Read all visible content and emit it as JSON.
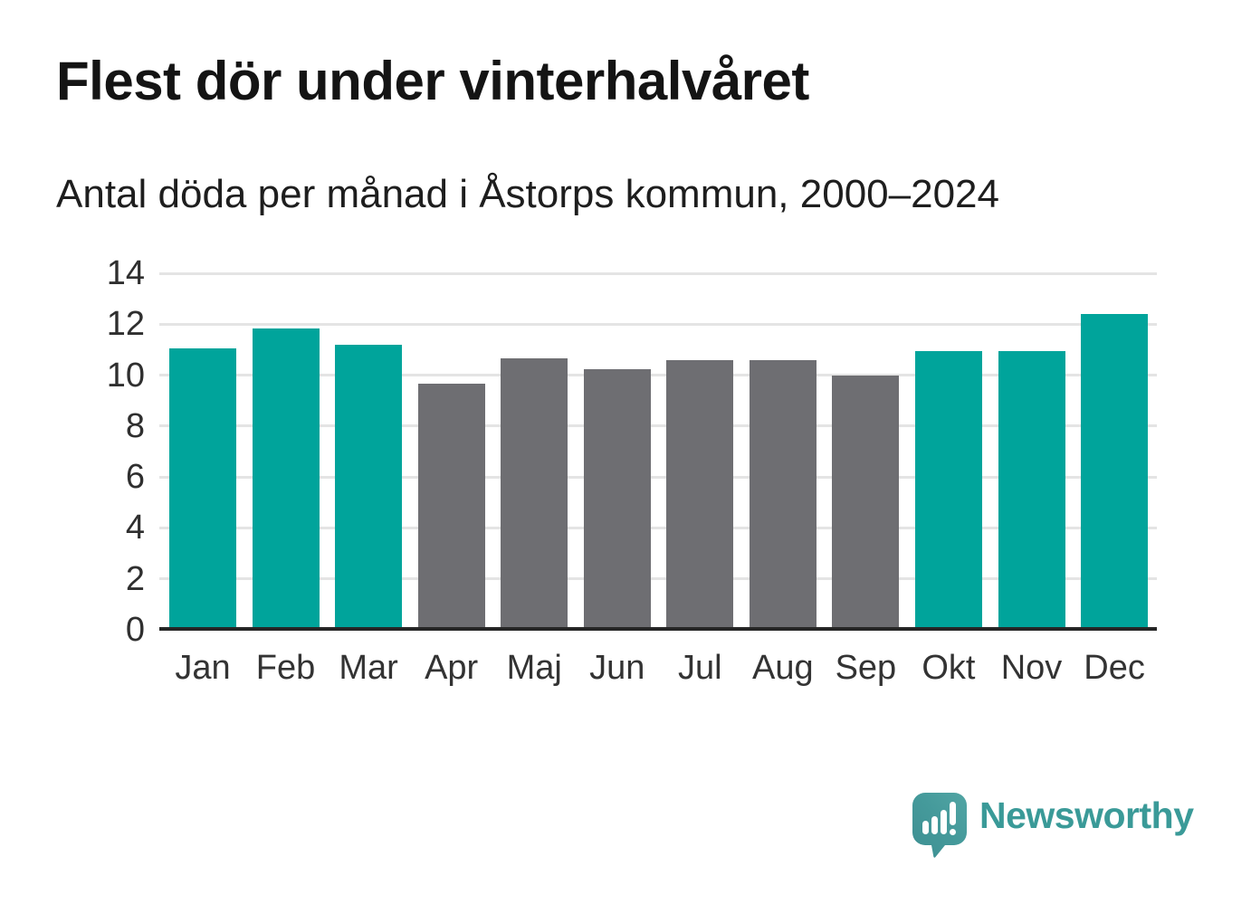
{
  "header": {
    "title": "Flest dör under vinterhalvåret",
    "subtitle": "Antal döda per månad i Åstorps kommun, 2000–2024"
  },
  "chart_data": {
    "type": "bar",
    "title": "Flest dör under vinterhalvåret",
    "subtitle": "Antal döda per månad i Åstorps kommun, 2000–2024",
    "categories": [
      "Jan",
      "Feb",
      "Mar",
      "Apr",
      "Maj",
      "Jun",
      "Jul",
      "Aug",
      "Sep",
      "Okt",
      "Nov",
      "Dec"
    ],
    "values": [
      11.05,
      11.85,
      11.2,
      9.65,
      10.65,
      10.25,
      10.6,
      10.6,
      10.0,
      10.95,
      10.95,
      12.4
    ],
    "bar_colors": [
      "#00a49b",
      "#00a49b",
      "#00a49b",
      "#6e6e72",
      "#6e6e72",
      "#6e6e72",
      "#6e6e72",
      "#6e6e72",
      "#6e6e72",
      "#00a49b",
      "#00a49b",
      "#00a49b"
    ],
    "series_colors": {
      "winter_teal": "#00a49b",
      "summer_gray": "#6e6e72"
    },
    "ylim": [
      0,
      14
    ],
    "yticks": [
      0,
      2,
      4,
      6,
      8,
      10,
      12,
      14
    ],
    "grid": true,
    "legend": false,
    "xlabel": "",
    "ylabel": ""
  },
  "branding": {
    "name": "Newsworthy",
    "wordmark_color": "#3a9a98",
    "icon": "newsworthy-speech-bubble-chart-icon",
    "icon_color": "#459a9b"
  }
}
